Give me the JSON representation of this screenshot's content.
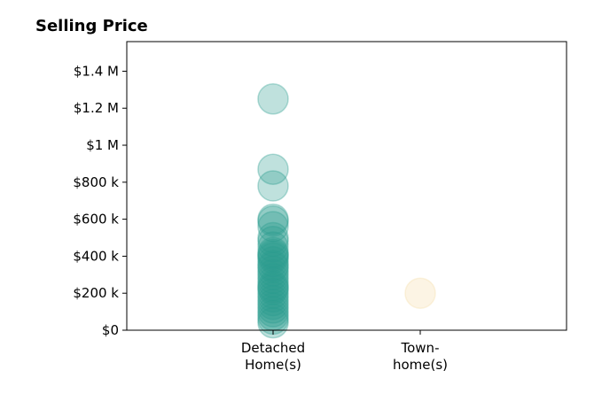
{
  "chart_data": {
    "type": "scatter",
    "title": "Selling Price",
    "xlabel": "",
    "ylabel": "",
    "categories": [
      {
        "lines": [
          "Detached",
          "Home(s)"
        ],
        "color": "#2a9d8f"
      },
      {
        "lines": [
          "Town-",
          "home(s)"
        ],
        "color": "#f4dca6"
      }
    ],
    "ylim": [
      0,
      1560000
    ],
    "yticks": [
      {
        "value": 0,
        "label": "$0"
      },
      {
        "value": 200000,
        "label": "$200 k"
      },
      {
        "value": 400000,
        "label": "$400 k"
      },
      {
        "value": 600000,
        "label": "$600 k"
      },
      {
        "value": 800000,
        "label": "$800 k"
      },
      {
        "value": 1000000,
        "label": "$1 M"
      },
      {
        "value": 1200000,
        "label": "$1.2 M"
      },
      {
        "value": 1400000,
        "label": "$1.4 M"
      }
    ],
    "series": [
      {
        "category": 0,
        "values": [
          1250000,
          870000,
          780000,
          600000,
          590000,
          560000,
          500000,
          480000,
          450000,
          420000,
          410000,
          400000,
          390000,
          370000,
          350000,
          340000,
          320000,
          300000,
          280000,
          260000,
          240000,
          230000,
          220000,
          200000,
          180000,
          160000,
          140000,
          120000,
          100000,
          80000,
          60000,
          40000
        ]
      },
      {
        "category": 1,
        "values": [
          200000
        ]
      }
    ],
    "grid": false,
    "legend": "none"
  }
}
